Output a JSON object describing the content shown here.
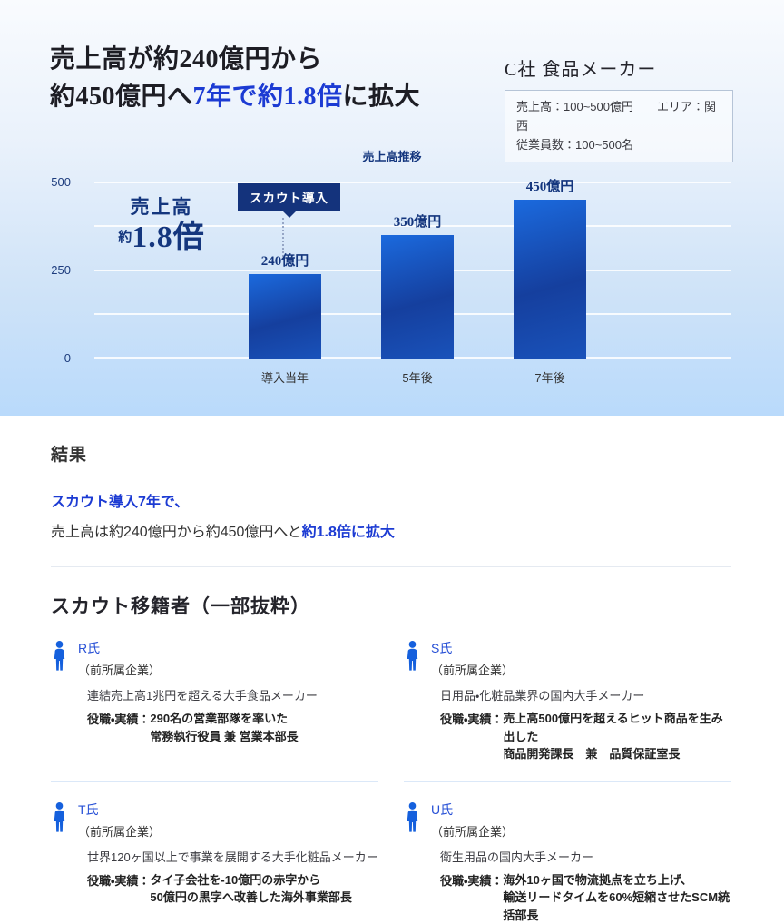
{
  "hero": {
    "title_line1": "売上高が約240億円から",
    "title_line2_pre": "約450億円へ",
    "title_line2_accent": "7年で約1.8倍",
    "title_line2_post": "に拡大"
  },
  "company": {
    "name": "C社 食品メーカー",
    "sales": "売上高：100~500億円",
    "area": "エリア：関西",
    "employees": "従業員数：100~500名"
  },
  "chart_data": {
    "type": "bar",
    "title": "売上高推移",
    "categories": [
      "導入当年",
      "5年後",
      "7年後"
    ],
    "values": [
      240,
      350,
      450
    ],
    "value_labels": [
      "240億円",
      "350億円",
      "450億円"
    ],
    "unit": "億円",
    "ylim": [
      0,
      500
    ],
    "y_tick_labels": [
      "500",
      "250",
      "0"
    ],
    "gridline_step": 125,
    "grid": true,
    "legend": false,
    "annotations": {
      "badge": "スカウト導入",
      "badge_target_category": "導入当年",
      "growth_label": "売上高",
      "growth_prefix": "約",
      "growth_value": "1.8倍"
    },
    "colors": {
      "bar_bright": "#1b6ade",
      "bar_dark": "#153f9e",
      "badge": "#14337c"
    }
  },
  "results": {
    "heading": "結果",
    "line1": "スカウト導入7年で、",
    "line2_normal": "売上高は約240億円から約450億円へと",
    "line2_accent": "約1.8倍に拡大"
  },
  "transferees": {
    "heading": "スカウト移籍者（一部抜粋）",
    "affiliation_label": "（前所属企業）",
    "role_label": "役職・実績：",
    "members": [
      {
        "name": "R氏",
        "company": "連結売上高1兆円を超える大手食品メーカー",
        "role_line1": "290名の営業部隊を率いた",
        "role_line2": "常務執行役員 兼 営業本部長"
      },
      {
        "name": "S氏",
        "company": "日用品・化粧品業界の国内大手メーカー",
        "role_line1": "売上高500億円を超えるヒット商品を生み出した",
        "role_line2": "商品開発課長　兼　品質保証室長"
      },
      {
        "name": "T氏",
        "company": "世界120ヶ国以上で事業を展開する大手化粧品メーカー",
        "role_line1": "タイ子会社を-10億円の赤字から",
        "role_line2": "50億円の黒字へ改善した海外事業部長"
      },
      {
        "name": "U氏",
        "company": "衛生用品の国内大手メーカー",
        "role_line1": "海外10ヶ国で物流拠点を立ち上げ、",
        "role_line2": "輸送リードタイムを60%短縮させたSCM統括部長"
      }
    ]
  },
  "accent_color": "#1c3bd3"
}
